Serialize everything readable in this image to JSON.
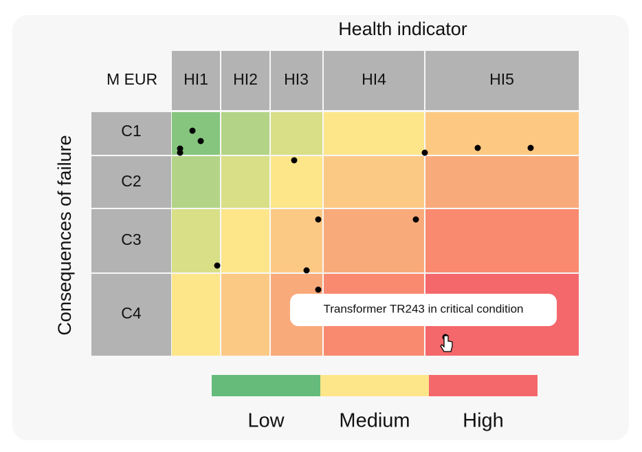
{
  "header": {
    "title": "Health indicator",
    "unit": "M EUR",
    "columns": [
      "HI1",
      "HI2",
      "HI3",
      "HI4",
      "HI5"
    ]
  },
  "rows": {
    "axis_label": "Consequences of failure",
    "labels": [
      "C1",
      "C2",
      "C3",
      "C4"
    ]
  },
  "tooltip": "Transformer TR243 in critical condition",
  "legend": [
    "Low",
    "Medium",
    "High"
  ]
}
